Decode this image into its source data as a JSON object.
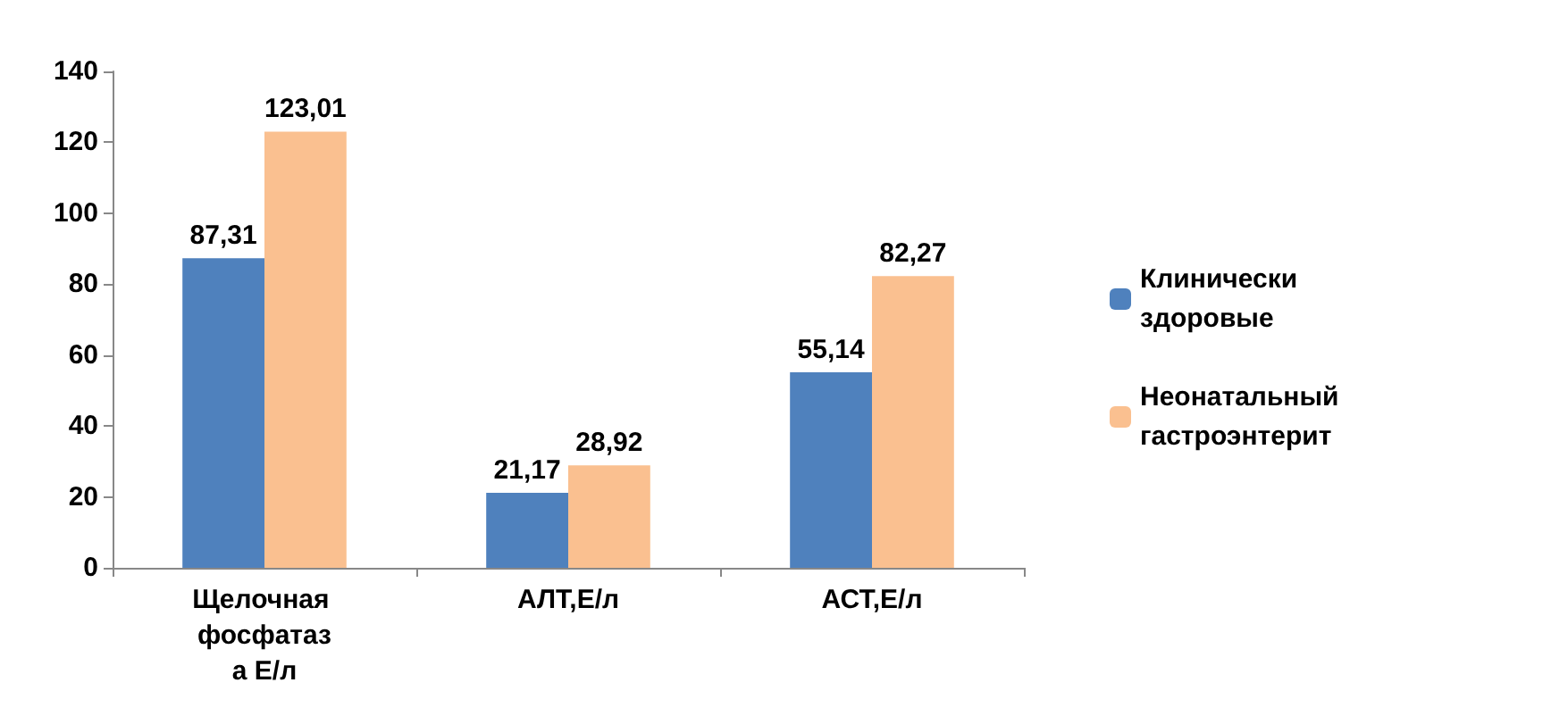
{
  "chart_data": {
    "type": "bar",
    "categories": [
      "Щелочная фосфатаза Е/л",
      "АЛТ,Е/л",
      "АСТ,Е/л"
    ],
    "series": [
      {
        "name": "Клинически здоровые",
        "color": "#4f81bd",
        "values": [
          87.31,
          21.17,
          55.14
        ],
        "value_labels": [
          "87,31",
          "21,17",
          "55,14"
        ]
      },
      {
        "name": "Неонатальный гастроэнтерит",
        "color": "#fac090",
        "values": [
          123.01,
          28.92,
          82.27
        ],
        "value_labels": [
          "123,01",
          "28,92",
          "82,27"
        ]
      }
    ],
    "ylim": [
      0,
      140
    ],
    "yticks": [
      0,
      20,
      40,
      60,
      80,
      100,
      120,
      140
    ],
    "grid": false,
    "legend": "right"
  }
}
